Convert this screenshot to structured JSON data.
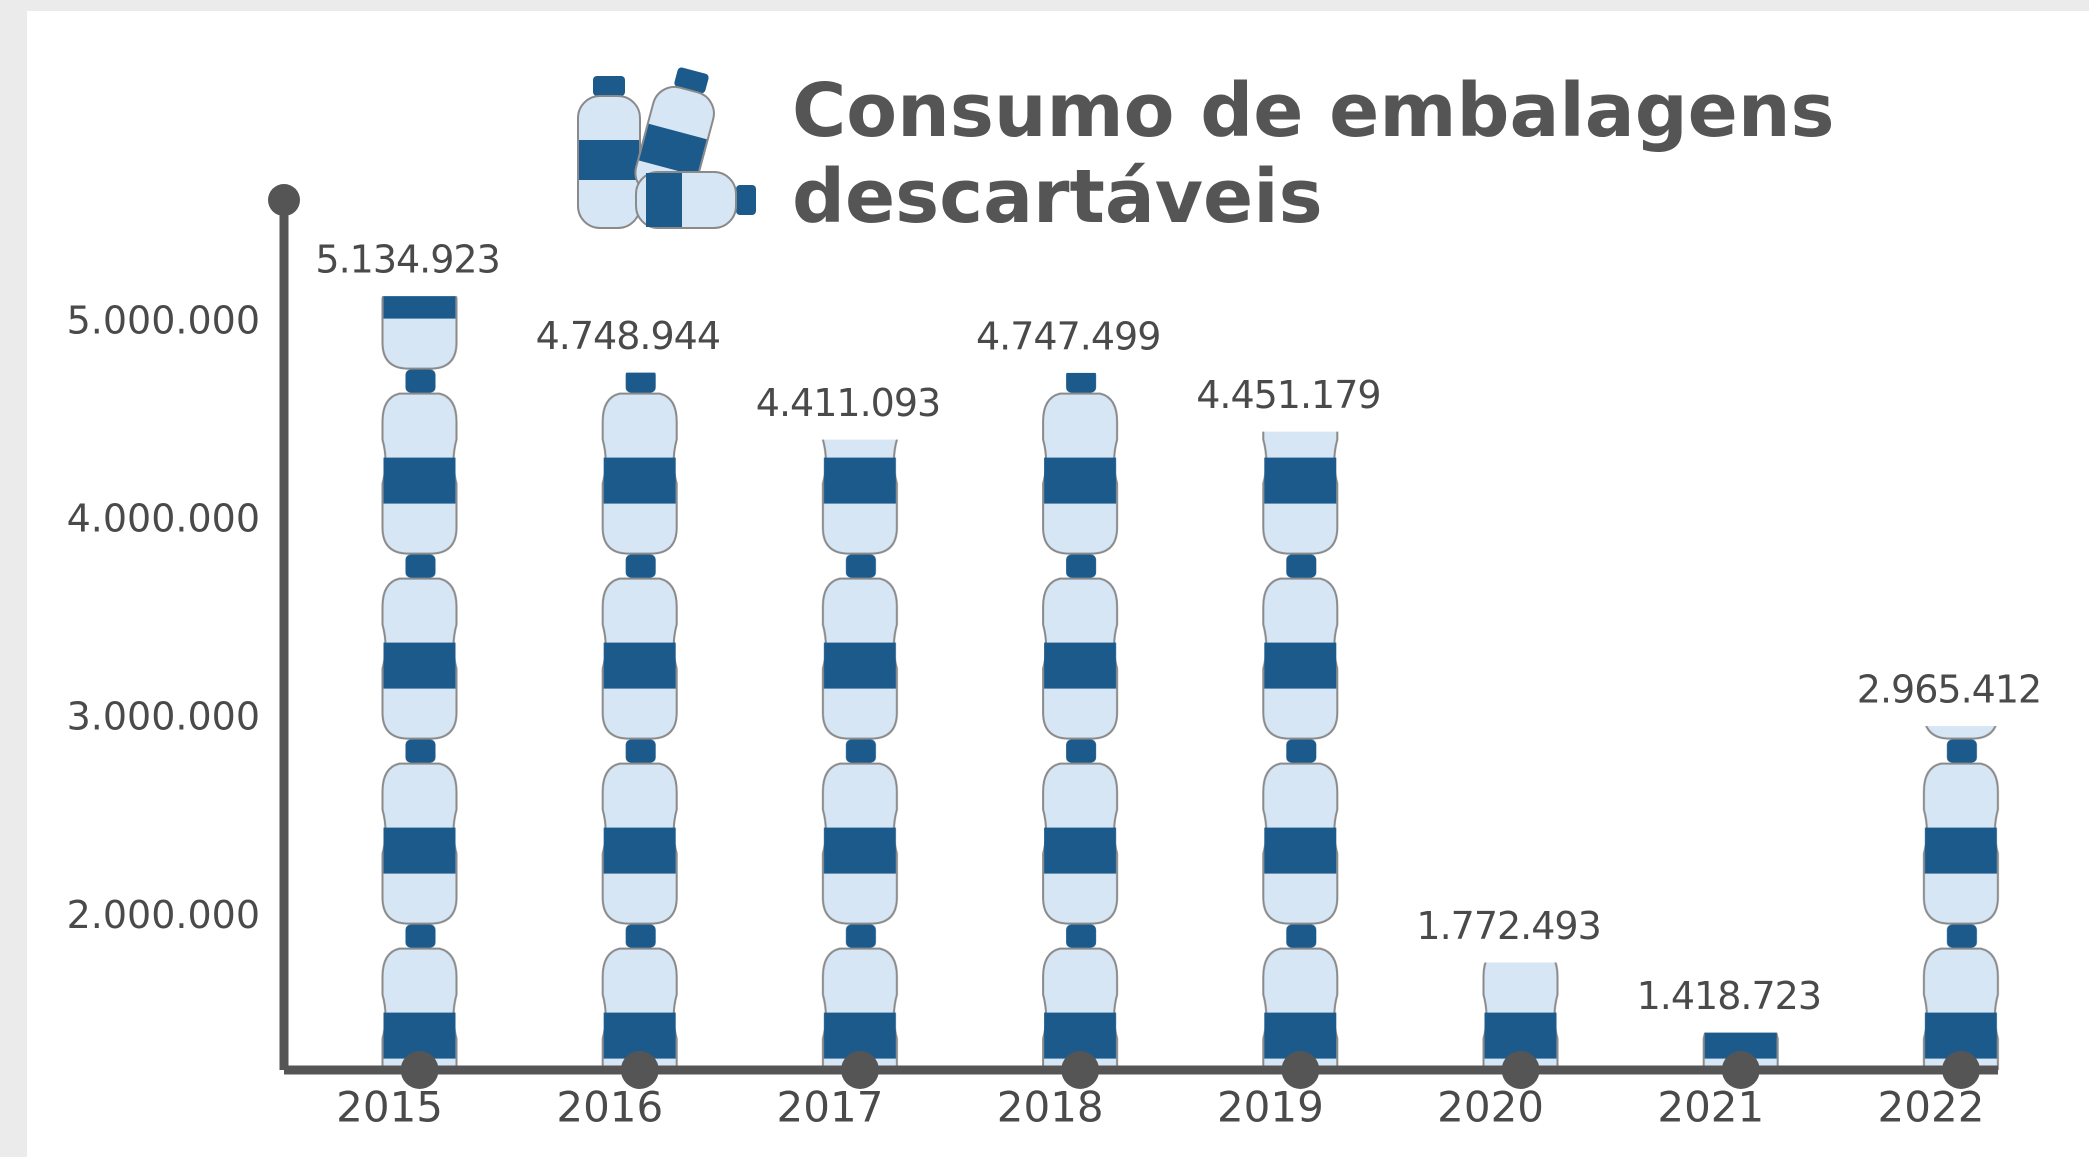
{
  "chart_data": {
    "type": "pictograph",
    "title": [
      "Consumo de embalagens",
      "descartáveis"
    ],
    "categories": [
      "2015",
      "2016",
      "2017",
      "2018",
      "2019",
      "2020",
      "2021",
      "2022"
    ],
    "values": [
      5134923,
      4748944,
      4411093,
      4747499,
      4451179,
      1772493,
      1418723,
      2965412
    ],
    "value_labels": [
      "5.134.923",
      "4.748.944",
      "4.411.093",
      "4.747.499",
      "4.451.179",
      "1.772.493",
      "1.418.723",
      "2.965.412"
    ],
    "ylim": [
      1230000,
      5620000
    ],
    "yticks": [
      {
        "value": 2000000,
        "label": "2.000.000"
      },
      {
        "value": 3000000,
        "label": "3.000.000"
      },
      {
        "value": 4000000,
        "label": "4.000.000"
      },
      {
        "value": 5000000,
        "label": "5.000.000"
      }
    ],
    "color": "#1c5a8c"
  }
}
